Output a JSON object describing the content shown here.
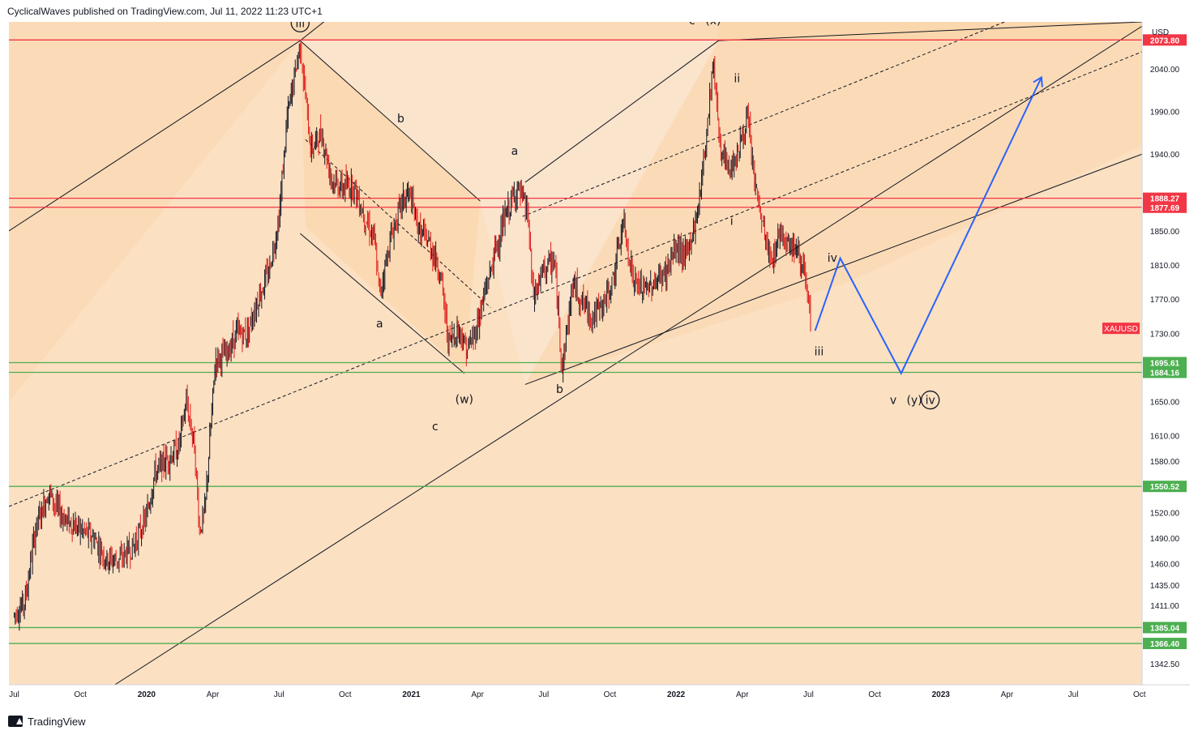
{
  "header": {
    "text": "CyclicalWaves published on TradingView.com, Jul 11, 2022 11:23 UTC+1"
  },
  "footer": {
    "brand": "TradingView"
  },
  "colors": {
    "background": "#fbe4cc",
    "band": "#fcd3a5",
    "resistance": "#f23645",
    "support": "#4caf50",
    "projection": "#2962ff",
    "candle_up": "#131722",
    "candle_down": "#e01b1b"
  },
  "chart_data": {
    "type": "candlestick",
    "symbol": "XAUUSD",
    "currency": "USD",
    "y_range": [
      1318,
      2095
    ],
    "price_ticks": [
      1342.5,
      1366.4,
      1385.04,
      1411,
      1435,
      1460,
      1490,
      1520,
      1550.52,
      1580,
      1610,
      1650,
      1684.16,
      1695.61,
      1730,
      1770,
      1810,
      1850,
      1877.69,
      1888.27,
      1940,
      1990,
      2040,
      2073.8
    ],
    "time_labels": [
      {
        "label": "Jul",
        "t": 2019.5,
        "bold": false
      },
      {
        "label": "Oct",
        "t": 2019.75,
        "bold": false
      },
      {
        "label": "2020",
        "t": 2020.0,
        "bold": true
      },
      {
        "label": "Apr",
        "t": 2020.25,
        "bold": false
      },
      {
        "label": "Jul",
        "t": 2020.5,
        "bold": false
      },
      {
        "label": "Oct",
        "t": 2020.75,
        "bold": false
      },
      {
        "label": "2021",
        "t": 2021.0,
        "bold": true
      },
      {
        "label": "Apr",
        "t": 2021.25,
        "bold": false
      },
      {
        "label": "Jul",
        "t": 2021.5,
        "bold": false
      },
      {
        "label": "Oct",
        "t": 2021.75,
        "bold": false
      },
      {
        "label": "2022",
        "t": 2022.0,
        "bold": true
      },
      {
        "label": "Apr",
        "t": 2022.25,
        "bold": false
      },
      {
        "label": "Jul",
        "t": 2022.5,
        "bold": false
      },
      {
        "label": "Oct",
        "t": 2022.75,
        "bold": false
      },
      {
        "label": "2023",
        "t": 2023.0,
        "bold": true
      },
      {
        "label": "Apr",
        "t": 2023.25,
        "bold": false
      },
      {
        "label": "Jul",
        "t": 2023.5,
        "bold": false
      },
      {
        "label": "Oct",
        "t": 2023.75,
        "bold": false
      }
    ],
    "x_range": [
      2019.48,
      2023.76
    ],
    "resistance_levels": [
      2073.8,
      1888.27,
      1877.69
    ],
    "support_levels": [
      1695.61,
      1684.16,
      1550.52,
      1385.04,
      1366.4
    ],
    "current_price_label": "XAUUSD",
    "current_price": 1732,
    "price_path": [
      [
        2019.5,
        1400
      ],
      [
        2019.54,
        1415
      ],
      [
        2019.58,
        1500
      ],
      [
        2019.63,
        1545
      ],
      [
        2019.66,
        1525
      ],
      [
        2019.7,
        1510
      ],
      [
        2019.75,
        1500
      ],
      [
        2019.8,
        1490
      ],
      [
        2019.85,
        1465
      ],
      [
        2019.9,
        1465
      ],
      [
        2019.95,
        1480
      ],
      [
        2020.0,
        1515
      ],
      [
        2020.03,
        1565
      ],
      [
        2020.07,
        1580
      ],
      [
        2020.12,
        1595
      ],
      [
        2020.15,
        1650
      ],
      [
        2020.18,
        1600
      ],
      [
        2020.2,
        1500
      ],
      [
        2020.22,
        1520
      ],
      [
        2020.26,
        1700
      ],
      [
        2020.3,
        1705
      ],
      [
        2020.34,
        1730
      ],
      [
        2020.38,
        1730
      ],
      [
        2020.42,
        1770
      ],
      [
        2020.46,
        1800
      ],
      [
        2020.5,
        1865
      ],
      [
        2020.53,
        1980
      ],
      [
        2020.58,
        2070
      ],
      [
        2020.62,
        1945
      ],
      [
        2020.66,
        1965
      ],
      [
        2020.7,
        1910
      ],
      [
        2020.74,
        1900
      ],
      [
        2020.78,
        1905
      ],
      [
        2020.82,
        1870
      ],
      [
        2020.86,
        1840
      ],
      [
        2020.88,
        1775
      ],
      [
        2020.92,
        1840
      ],
      [
        2020.96,
        1880
      ],
      [
        2020.99,
        1895
      ],
      [
        2021.03,
        1850
      ],
      [
        2021.07,
        1835
      ],
      [
        2021.11,
        1800
      ],
      [
        2021.14,
        1720
      ],
      [
        2021.18,
        1735
      ],
      [
        2021.21,
        1710
      ],
      [
        2021.24,
        1730
      ],
      [
        2021.28,
        1780
      ],
      [
        2021.32,
        1830
      ],
      [
        2021.36,
        1870
      ],
      [
        2021.4,
        1900
      ],
      [
        2021.44,
        1870
      ],
      [
        2021.46,
        1770
      ],
      [
        2021.5,
        1805
      ],
      [
        2021.54,
        1815
      ],
      [
        2021.57,
        1690
      ],
      [
        2021.61,
        1790
      ],
      [
        2021.64,
        1770
      ],
      [
        2021.68,
        1750
      ],
      [
        2021.72,
        1760
      ],
      [
        2021.76,
        1790
      ],
      [
        2021.8,
        1860
      ],
      [
        2021.84,
        1790
      ],
      [
        2021.88,
        1780
      ],
      [
        2021.92,
        1790
      ],
      [
        2021.96,
        1800
      ],
      [
        2022.0,
        1830
      ],
      [
        2022.04,
        1820
      ],
      [
        2022.08,
        1870
      ],
      [
        2022.11,
        1950
      ],
      [
        2022.14,
        2050
      ],
      [
        2022.17,
        1940
      ],
      [
        2022.2,
        1920
      ],
      [
        2022.24,
        1950
      ],
      [
        2022.27,
        1980
      ],
      [
        2022.3,
        1900
      ],
      [
        2022.33,
        1850
      ],
      [
        2022.36,
        1810
      ],
      [
        2022.39,
        1850
      ],
      [
        2022.42,
        1840
      ],
      [
        2022.45,
        1830
      ],
      [
        2022.48,
        1810
      ],
      [
        2022.51,
        1735
      ]
    ],
    "projection_path": [
      [
        2022.525,
        1733
      ],
      [
        2022.62,
        1818
      ],
      [
        2022.85,
        1683
      ],
      [
        2023.38,
        2030
      ]
    ],
    "wave_labels": [
      {
        "text": "iii",
        "t": 2020.58,
        "p": 2090,
        "circled": true
      },
      {
        "text": "b",
        "t": 2020.96,
        "p": 1978,
        "circled": false
      },
      {
        "text": "a",
        "t": 2020.88,
        "p": 1738,
        "circled": false
      },
      {
        "text": "(w)",
        "t": 2021.2,
        "p": 1649,
        "circled": false
      },
      {
        "text": "c",
        "t": 2021.09,
        "p": 1617,
        "circled": false
      },
      {
        "text": "a",
        "t": 2021.39,
        "p": 1940,
        "circled": false
      },
      {
        "text": "b",
        "t": 2021.56,
        "p": 1661,
        "circled": false
      },
      {
        "text": "c",
        "t": 2022.06,
        "p": 2093,
        "circled": false
      },
      {
        "text": "(x)",
        "t": 2022.14,
        "p": 2093,
        "circled": false
      },
      {
        "text": "ii",
        "t": 2022.23,
        "p": 2025,
        "circled": false
      },
      {
        "text": "i",
        "t": 2022.21,
        "p": 1858,
        "circled": false
      },
      {
        "text": "iv",
        "t": 2022.59,
        "p": 1815,
        "circled": false
      },
      {
        "text": "iii",
        "t": 2022.54,
        "p": 1705,
        "circled": false
      },
      {
        "text": "v",
        "t": 2022.82,
        "p": 1648,
        "circled": false
      },
      {
        "text": "(y)",
        "t": 2022.9,
        "p": 1648,
        "circled": false
      },
      {
        "text": "iv",
        "t": 2022.96,
        "p": 1648,
        "circled": true
      }
    ]
  }
}
